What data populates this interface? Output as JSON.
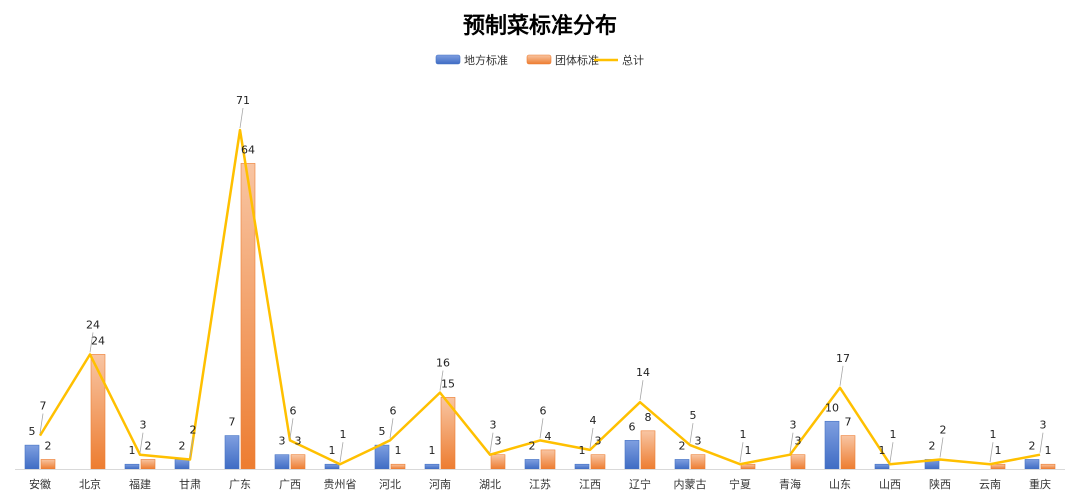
{
  "chart_data": {
    "type": "bar",
    "title": "预制菜标准分布",
    "xlabel": "",
    "ylabel": "",
    "ylim": [
      0,
      80
    ],
    "grid": false,
    "legend_position": "top-center",
    "categories": [
      "安徽",
      "北京",
      "福建",
      "甘肃",
      "广东",
      "广西",
      "贵州省",
      "河北",
      "河南",
      "湖北",
      "江苏",
      "江西",
      "辽宁",
      "内蒙古",
      "宁夏",
      "青海",
      "山东",
      "山西",
      "陕西",
      "云南",
      "重庆"
    ],
    "series": [
      {
        "name": "地方标准",
        "kind": "bar",
        "color": "#4472C4",
        "values": [
          5,
          0,
          1,
          2,
          7,
          3,
          1,
          5,
          1,
          0,
          2,
          1,
          6,
          2,
          0,
          0,
          10,
          1,
          2,
          0,
          2
        ],
        "labels": [
          "5",
          "",
          "1",
          "2",
          "7",
          "3",
          "1",
          "5",
          "1",
          "",
          "2",
          "1",
          "6",
          "2",
          "",
          "",
          "10",
          "1",
          "2",
          "",
          "2"
        ]
      },
      {
        "name": "团体标准",
        "kind": "bar",
        "color": "#ED7D31",
        "values": [
          2,
          24,
          2,
          0,
          64,
          3,
          0,
          1,
          15,
          3,
          4,
          3,
          8,
          3,
          1,
          3,
          7,
          0,
          0,
          1,
          1
        ],
        "labels": [
          "2",
          "24",
          "2",
          "",
          "64",
          "3",
          "",
          "1",
          "15",
          "3",
          "4",
          "3",
          "8",
          "3",
          "1",
          "3",
          "7",
          "",
          "",
          "1",
          "1"
        ]
      },
      {
        "name": "总计",
        "kind": "line",
        "color": "#FFC000",
        "values": [
          7,
          24,
          3,
          2,
          71,
          6,
          1,
          6,
          16,
          3,
          6,
          4,
          14,
          5,
          1,
          3,
          17,
          1,
          2,
          1,
          3
        ],
        "labels": [
          "7",
          "24",
          "3",
          "2",
          "71",
          "6",
          "1",
          "6",
          "16",
          "3",
          "6",
          "4",
          "14",
          "5",
          "1",
          "3",
          "17",
          "1",
          "2",
          "1",
          "3"
        ]
      }
    ]
  }
}
